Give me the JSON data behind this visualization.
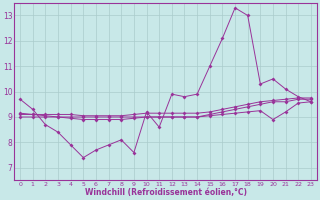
{
  "x": [
    0,
    1,
    2,
    3,
    4,
    5,
    6,
    7,
    8,
    9,
    10,
    11,
    12,
    13,
    14,
    15,
    16,
    17,
    18,
    19,
    20,
    21,
    22,
    23
  ],
  "line1": [
    9.7,
    9.3,
    8.7,
    8.4,
    7.9,
    7.4,
    7.7,
    7.9,
    8.1,
    7.6,
    9.2,
    8.6,
    9.9,
    9.8,
    9.9,
    11.0,
    12.1,
    13.3,
    13.0,
    10.3,
    10.5,
    10.1,
    9.8,
    9.6
  ],
  "line2": [
    9.0,
    9.0,
    9.0,
    9.0,
    9.0,
    9.0,
    9.0,
    9.0,
    9.0,
    9.0,
    9.0,
    9.0,
    9.0,
    9.0,
    9.0,
    9.1,
    9.2,
    9.3,
    9.4,
    9.5,
    9.6,
    9.6,
    9.7,
    9.7
  ],
  "line3": [
    9.1,
    9.1,
    9.1,
    9.1,
    9.1,
    9.05,
    9.05,
    9.05,
    9.05,
    9.1,
    9.15,
    9.15,
    9.15,
    9.15,
    9.15,
    9.2,
    9.3,
    9.4,
    9.5,
    9.6,
    9.65,
    9.7,
    9.75,
    9.75
  ],
  "line4": [
    9.15,
    9.1,
    9.05,
    9.0,
    8.95,
    8.9,
    8.9,
    8.9,
    8.9,
    8.95,
    9.0,
    9.0,
    9.0,
    9.0,
    9.0,
    9.05,
    9.1,
    9.15,
    9.2,
    9.25,
    8.9,
    9.2,
    9.55,
    9.6
  ],
  "line_color": "#993399",
  "bg_color": "#c8e8e8",
  "grid_color": "#aacccc",
  "ylim": [
    6.5,
    13.5
  ],
  "yticks": [
    7,
    8,
    9,
    10,
    11,
    12,
    13
  ],
  "xlim": [
    -0.5,
    23.5
  ],
  "xlabel": "Windchill (Refroidissement éolien,°C)"
}
